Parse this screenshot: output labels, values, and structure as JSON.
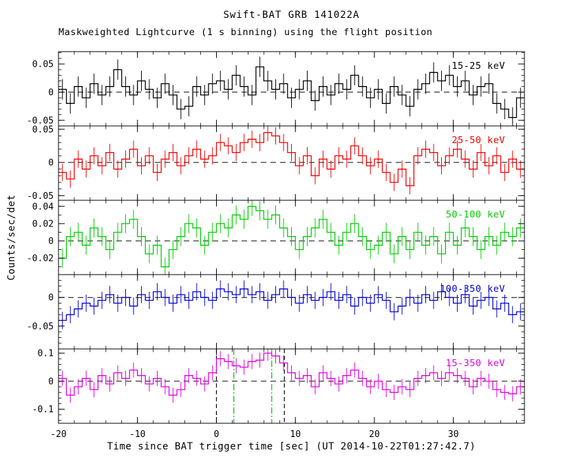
{
  "figure": {
    "title": "Swift-BAT GRB 141022A",
    "subtitle": "Maskweighted Lightcurve (1 s binning) using the flight position",
    "xlabel": "Time since BAT trigger time [sec] (UT 2014-10-22T01:27:42.7)",
    "ylabel": "Counts/sec/det",
    "background": "#ffffff"
  },
  "chart_data": {
    "type": "line",
    "style": "step-histogram-with-errorbars",
    "binning_sec": 1,
    "x_start": -20,
    "x_step": 1,
    "xlim": [
      -20,
      39
    ],
    "xticks": [
      -20,
      -10,
      0,
      10,
      20,
      30
    ],
    "xminor_step": 2,
    "zero_line": {
      "style": "dashed",
      "color": "#000000"
    },
    "panels": [
      {
        "label": "15-25 keV",
        "color": "#000000",
        "ylim": [
          -0.06,
          0.072
        ],
        "yticks": [
          -0.05,
          0,
          0.05
        ],
        "yminor": 0.01,
        "err": 0.018,
        "values": [
          0.005,
          -0.02,
          0.01,
          -0.01,
          0.015,
          -0.005,
          0.01,
          0.04,
          0.01,
          -0.005,
          0.02,
          0.005,
          -0.01,
          0.015,
          -0.005,
          -0.03,
          -0.025,
          0.01,
          -0.005,
          0.015,
          0.02,
          0.005,
          0.03,
          0.01,
          -0.005,
          0.045,
          0.02,
          0.005,
          0.015,
          -0.01,
          0.005,
          0.02,
          -0.015,
          0.01,
          -0.005,
          0.015,
          0.005,
          0.03,
          0.01,
          -0.01,
          0.005,
          -0.02,
          0.01,
          -0.005,
          -0.025,
          0.005,
          0.015,
          0.035,
          0.02,
          0.03,
          0.01,
          0.02,
          -0.005,
          0.01,
          0.015,
          -0.02,
          -0.03,
          -0.045,
          -0.01
        ]
      },
      {
        "label": "25-50 keV",
        "color": "#ee0000",
        "ylim": [
          -0.057,
          0.055
        ],
        "yticks": [
          -0.05,
          0,
          0.05
        ],
        "yminor": 0.01,
        "err": 0.013,
        "values": [
          -0.015,
          -0.025,
          0.005,
          -0.01,
          0.01,
          -0.005,
          0.015,
          -0.01,
          0.005,
          0.02,
          -0.005,
          0.01,
          -0.015,
          0.005,
          0.015,
          -0.005,
          0.01,
          0.02,
          0.005,
          0.01,
          0.03,
          0.025,
          0.015,
          0.03,
          0.035,
          0.03,
          0.045,
          0.04,
          0.03,
          0.015,
          -0.005,
          0.01,
          -0.02,
          0.005,
          -0.01,
          0.01,
          0.005,
          0.025,
          0.01,
          -0.005,
          0.005,
          -0.015,
          -0.03,
          -0.01,
          -0.035,
          0.01,
          0.02,
          0.015,
          -0.005,
          0.01,
          0.02,
          0.005,
          -0.01,
          0.015,
          -0.005,
          0.01,
          -0.015,
          0.005,
          -0.01
        ]
      },
      {
        "label": "50-100 keV",
        "color": "#00cc00",
        "ylim": [
          -0.039,
          0.047
        ],
        "yticks": [
          -0.02,
          0,
          0.02,
          0.04
        ],
        "yminor": 0.01,
        "err": 0.011,
        "values": [
          -0.02,
          0.005,
          0.01,
          -0.005,
          0.015,
          0.005,
          -0.01,
          0.01,
          0.02,
          0.025,
          0.005,
          -0.015,
          -0.005,
          -0.03,
          -0.01,
          0.005,
          0.02,
          0.015,
          -0.005,
          0.01,
          0.02,
          0.015,
          0.03,
          0.025,
          0.04,
          0.035,
          0.025,
          0.03,
          0.015,
          0.005,
          -0.01,
          0.005,
          0.015,
          0.025,
          0.01,
          -0.005,
          0.01,
          0.02,
          0.005,
          -0.01,
          -0.005,
          0.01,
          -0.015,
          0.005,
          -0.01,
          0.01,
          -0.005,
          0.005,
          -0.015,
          0.01,
          -0.005,
          0.015,
          0.005,
          -0.01,
          0.005,
          -0.005,
          0.01,
          0.005,
          0.015
        ]
      },
      {
        "label": "100-350 keV",
        "color": "#0000cc",
        "ylim": [
          -0.09,
          0.04
        ],
        "yticks": [
          -0.05,
          0
        ],
        "yminor": 0.01,
        "err": 0.015,
        "values": [
          -0.04,
          -0.03,
          -0.02,
          -0.01,
          -0.015,
          -0.005,
          0.005,
          -0.01,
          0,
          -0.015,
          0.005,
          -0.005,
          0.01,
          0,
          -0.01,
          0.005,
          -0.005,
          0.01,
          0,
          -0.005,
          0.015,
          0.01,
          0.005,
          0.015,
          0.005,
          0.01,
          -0.005,
          0.005,
          0.015,
          0,
          -0.01,
          0.005,
          -0.005,
          0,
          0.01,
          -0.005,
          0.005,
          -0.015,
          0,
          -0.01,
          0.005,
          -0.005,
          -0.025,
          -0.015,
          0,
          -0.01,
          0.005,
          -0.005,
          0.01,
          0,
          -0.01,
          0.005,
          -0.015,
          -0.005,
          0,
          -0.02,
          -0.01,
          -0.03,
          -0.025
        ]
      },
      {
        "label": "15-350 keV",
        "color": "#dd00dd",
        "ylim": [
          -0.15,
          0.115
        ],
        "yticks": [
          -0.1,
          0,
          0.1
        ],
        "yminor": 0.02,
        "err": 0.027,
        "values": [
          0.01,
          -0.05,
          -0.02,
          0.01,
          -0.03,
          0.02,
          -0.01,
          0.03,
          0.01,
          0.04,
          0.02,
          -0.01,
          0.01,
          -0.02,
          -0.05,
          -0.03,
          0.02,
          0.01,
          -0.01,
          0.03,
          0.08,
          0.07,
          0.055,
          0.05,
          0.07,
          0.075,
          0.1,
          0.09,
          0.065,
          0.03,
          0.01,
          0.02,
          -0.02,
          0.03,
          0.01,
          -0.01,
          0.02,
          0.04,
          0.01,
          -0.02,
          0,
          -0.03,
          -0.04,
          -0.02,
          -0.03,
          0.01,
          0.02,
          0.03,
          0.01,
          0.03,
          0.02,
          0.01,
          -0.02,
          0.01,
          0,
          -0.03,
          -0.04,
          -0.045,
          -0.02
        ],
        "vlines": [
          {
            "t": 0.0,
            "color": "#000000",
            "style": "dashed"
          },
          {
            "t": 8.6,
            "color": "#000000",
            "style": "dashed"
          },
          {
            "t": 2.2,
            "color": "#00bb00",
            "style": "dashdot"
          },
          {
            "t": 7.0,
            "color": "#00bb00",
            "style": "dashdot"
          }
        ]
      }
    ]
  }
}
